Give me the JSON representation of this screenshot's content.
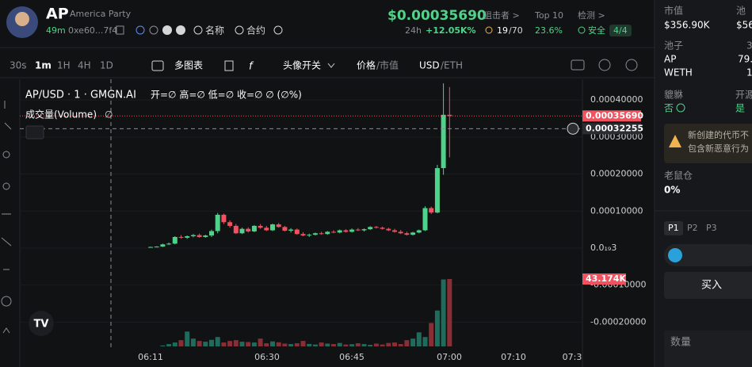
{
  "header": {
    "symbol": "AP",
    "name": "America Party",
    "age": "49m",
    "address": "0xe60...7f4",
    "name_button": "名称",
    "contract_button": "合约",
    "price": "$0.00035690",
    "change_period": "24h",
    "change": "+12.05K%",
    "snipers_title": "狙击者 >",
    "snipers": "19",
    "snipers_total": "/70",
    "top10_title": "Top 10",
    "top10": "23.6%",
    "check_title": "检测 >",
    "check_status": "安全",
    "check_score": "4/4"
  },
  "toolbar": {
    "intervals": [
      "30s",
      "1m",
      "1H",
      "4H",
      "1D"
    ],
    "multi_chart": "多图表",
    "avatar_toggle": "头像开关",
    "price": "价格",
    "market_cap": "/市值",
    "usd": "USD",
    "eth": "/ETH"
  },
  "chart_data": {
    "type": "candlestick",
    "title": "AP/USD · 1 · GMGN.AI",
    "ohlc": "开=∅ 高=∅ 低=∅ 收=∅ ∅ (∅%)",
    "volume_title": "成交量(Volume)",
    "volume_value": "∅",
    "up_color": "#4fd38a",
    "down_color": "#f0525f",
    "volume_up_color": "#1f6b5c",
    "volume_down_color": "#8a2e36",
    "candles": [
      [
        2e-06,
        4e-06,
        1e-06,
        3e-06
      ],
      [
        3e-06,
        5e-06,
        2e-06,
        4e-06
      ],
      [
        4e-06,
        1.2e-05,
        3e-06,
        1e-05
      ],
      [
        1e-05,
        1.5e-05,
        8e-06,
        1.2e-05
      ],
      [
        1.2e-05,
        3.2e-05,
        1e-05,
        3e-05
      ],
      [
        3e-05,
        3.5e-05,
        2.6e-05,
        2.8e-05
      ],
      [
        2.8e-05,
        3.4e-05,
        2.5e-05,
        3.2e-05
      ],
      [
        3.2e-05,
        3.8e-05,
        2.9e-05,
        3.5e-05
      ],
      [
        3.5e-05,
        3.9e-05,
        2.8e-05,
        3e-05
      ],
      [
        3e-05,
        3.6e-05,
        2.8e-05,
        3.4e-05
      ],
      [
        3.4e-05,
        5e-05,
        3e-05,
        4.6e-05
      ],
      [
        4.6e-05,
        9.5e-05,
        4e-05,
        9e-05
      ],
      [
        9e-05,
        9.3e-05,
        6.5e-05,
        7e-05
      ],
      [
        7e-05,
        7.5e-05,
        5.5e-05,
        6e-05
      ],
      [
        6e-05,
        6.5e-05,
        3.8e-05,
        4e-05
      ],
      [
        4e-05,
        5.5e-05,
        3.8e-05,
        5.2e-05
      ],
      [
        5.2e-05,
        5.6e-05,
        4.2e-05,
        4.5e-05
      ],
      [
        4.5e-05,
        6.2e-05,
        4.3e-05,
        6e-05
      ],
      [
        6e-05,
        6.5e-05,
        5.2e-05,
        5.5e-05
      ],
      [
        5.5e-05,
        6e-05,
        4.6e-05,
        4.8e-05
      ],
      [
        4.8e-05,
        6.6e-05,
        4.6e-05,
        6.4e-05
      ],
      [
        6.4e-05,
        6.8e-05,
        5.5e-05,
        5.7e-05
      ],
      [
        5.7e-05,
        6e-05,
        4.5e-05,
        4.7e-05
      ],
      [
        4.7e-05,
        5.4e-05,
        4.2e-05,
        5e-05
      ],
      [
        5e-05,
        5.3e-05,
        3.6e-05,
        3.8e-05
      ],
      [
        3.8e-05,
        4.3e-05,
        3.2e-05,
        3.4e-05
      ],
      [
        3.4e-05,
        3.9e-05,
        3e-05,
        3.6e-05
      ],
      [
        3.6e-05,
        4.2e-05,
        3.4e-05,
        4e-05
      ],
      [
        4e-05,
        4.4e-05,
        3.6e-05,
        3.8e-05
      ],
      [
        3.8e-05,
        4.6e-05,
        3.6e-05,
        4.4e-05
      ],
      [
        4.4e-05,
        4.8e-05,
        4e-05,
        4.2e-05
      ],
      [
        4.2e-05,
        5e-05,
        4e-05,
        4.8e-05
      ],
      [
        4.8e-05,
        5.1e-05,
        4.2e-05,
        4.4e-05
      ],
      [
        4.4e-05,
        5.3e-05,
        4.2e-05,
        5e-05
      ],
      [
        5e-05,
        5.4e-05,
        4.6e-05,
        4.8e-05
      ],
      [
        4.8e-05,
        5.3e-05,
        4.5e-05,
        5.1e-05
      ],
      [
        5.1e-05,
        5.9e-05,
        4.9e-05,
        5.7e-05
      ],
      [
        5.7e-05,
        6e-05,
        5.3e-05,
        5.5e-05
      ],
      [
        5.5e-05,
        5.8e-05,
        5e-05,
        5.2e-05
      ],
      [
        5.2e-05,
        5.5e-05,
        4.6e-05,
        4.8e-05
      ],
      [
        4.8e-05,
        5.2e-05,
        4.2e-05,
        4.4e-05
      ],
      [
        4.4e-05,
        4.9e-05,
        3.8e-05,
        4e-05
      ],
      [
        4e-05,
        4.4e-05,
        3.4e-05,
        3.6e-05
      ],
      [
        3.6e-05,
        4.4e-05,
        3.4e-05,
        4.2e-05
      ],
      [
        4.2e-05,
        5e-05,
        4e-05,
        4.8e-05
      ],
      [
        4.8e-05,
        0.000113,
        4.6e-05,
        0.000108
      ],
      [
        0.000108,
        0.000112,
        9.2e-05,
        9.6e-05
      ],
      [
        9.6e-05,
        0.000225,
        9.4e-05,
        0.000216
      ],
      [
        0.000216,
        0.000445,
        0.000198,
        0.00036
      ],
      [
        0.00036,
        0.000435,
        0.000245,
        0.0003569
      ]
    ],
    "volume": [
      0,
      0,
      600,
      1500,
      2500,
      4000,
      9500,
      5000,
      3500,
      3000,
      4200,
      6000,
      2500,
      3500,
      4000,
      3000,
      2800,
      2500,
      5000,
      2000,
      3200,
      2600,
      1800,
      1500,
      2000,
      3500,
      1600,
      1200,
      2500,
      1800,
      1500,
      2200,
      1200,
      1400,
      2000,
      1500,
      1000,
      1800,
      1200,
      2200,
      2500,
      1500,
      4000,
      5000,
      9000,
      6000,
      15000,
      23000,
      42900,
      43174
    ],
    "ylim": [
      -0.000272,
      0.000456
    ],
    "yticks": [
      {
        "value": 0.0004,
        "label": "0.00040000"
      },
      {
        "value": 0.0003,
        "label": "0.00030000"
      },
      {
        "value": 0.0002,
        "label": "0.00020000"
      },
      {
        "value": 0.0001,
        "label": "0.00010000"
      },
      {
        "value": 0,
        "label": "0.0₁₉3"
      },
      {
        "value": -0.0001,
        "label": "-0.00010000"
      },
      {
        "value": -0.0002,
        "label": "-0.00020000"
      }
    ],
    "xticks": [
      "06:11",
      "06:30",
      "06:45",
      "07:00",
      "07:10",
      "07:3"
    ],
    "last_price": {
      "value": 0.0003569,
      "label": "0.00035690"
    },
    "crosshair": {
      "value": 0.00032255,
      "label": "0.00032255"
    },
    "volume_label": {
      "value": 43174,
      "label": "43.174K"
    }
  },
  "side_panel": {
    "market_cap_title": "市值",
    "market_cap": "$356.90K",
    "pool_title_short": "池",
    "pool_short": "$56",
    "pool_title": "池子",
    "pool_head": "3",
    "pool_token": "AP",
    "pool_token_amount": "79.",
    "pool_base": "WETH",
    "pool_base_amount": "1",
    "honeypot_title": "貔貅",
    "honeypot": "否",
    "open_source_title": "开源",
    "open_source": "是",
    "warning_line1": "新创建的代币不",
    "warning_line2": "包含新恶意行为",
    "insider_title": "老鼠仓",
    "insider": "0%",
    "presets": [
      "P1",
      "P2",
      "P3"
    ],
    "buy": "买入",
    "amount": "数量"
  }
}
